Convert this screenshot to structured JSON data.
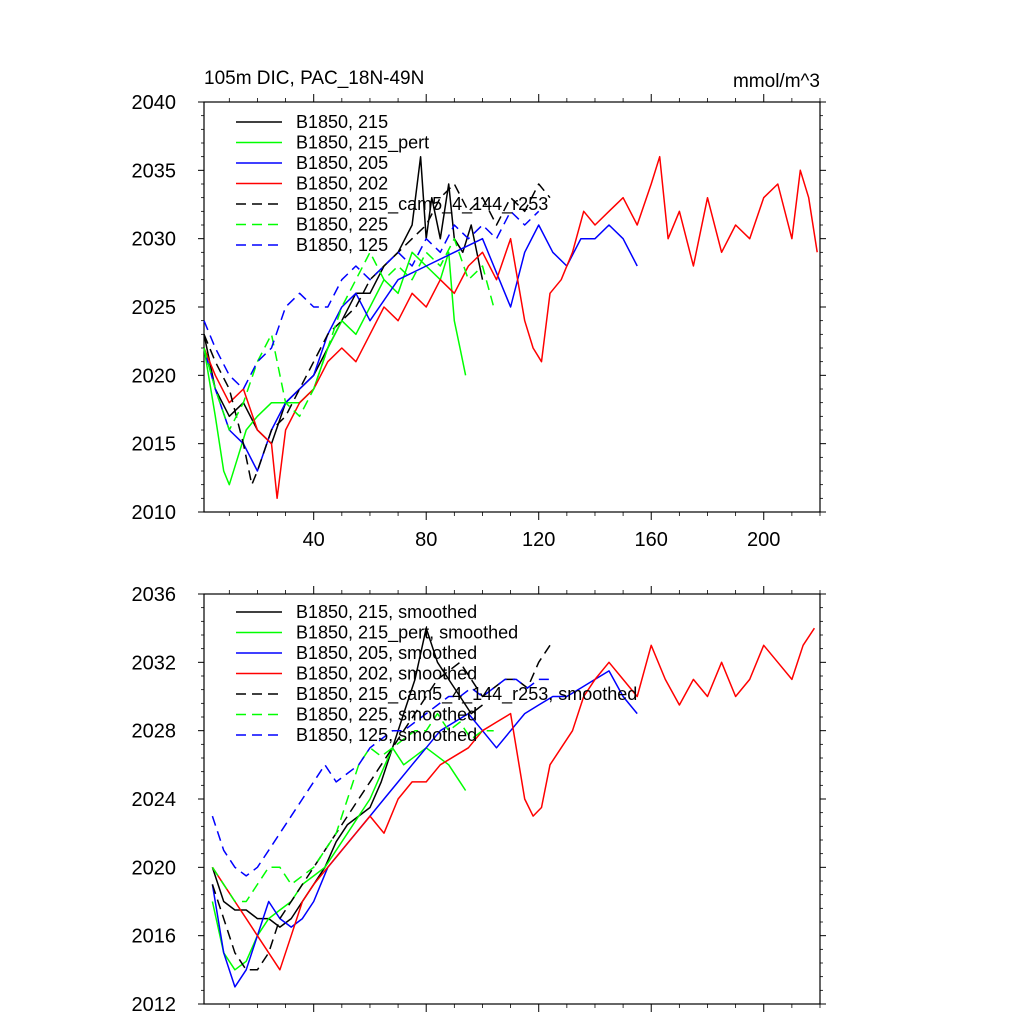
{
  "chart_data": [
    {
      "type": "line",
      "title_left": "105m DIC, PAC_18N-49N",
      "title_right": "mmol/m^3",
      "xlim": [
        1,
        220
      ],
      "ylim": [
        2010,
        2040
      ],
      "xticks": [
        40,
        80,
        120,
        160,
        200
      ],
      "yticks": [
        2010,
        2015,
        2020,
        2025,
        2030,
        2035,
        2040
      ],
      "legend_position": "top-left",
      "series": [
        {
          "name": "B1850, 215",
          "color": "#000000",
          "dash": false,
          "x": [
            1,
            5,
            10,
            15,
            20,
            25,
            30,
            35,
            40,
            45,
            50,
            55,
            60,
            65,
            70,
            75,
            78,
            80,
            82,
            85,
            88,
            90,
            93,
            96,
            100
          ],
          "y": [
            2023,
            2019,
            2017,
            2018,
            2016,
            2015,
            2018,
            2019,
            2020,
            2022,
            2024,
            2026,
            2026,
            2028,
            2029,
            2031,
            2036,
            2030,
            2033,
            2030,
            2034,
            2030,
            2029,
            2031,
            2027
          ]
        },
        {
          "name": "B1850, 215_pert",
          "color": "#00ff00",
          "dash": false,
          "x": [
            1,
            5,
            8,
            10,
            13,
            16,
            20,
            25,
            30,
            35,
            40,
            45,
            50,
            55,
            60,
            65,
            70,
            75,
            80,
            85,
            88,
            90,
            92,
            94
          ],
          "y": [
            2022,
            2017,
            2013,
            2012,
            2014,
            2016,
            2017,
            2018,
            2018,
            2018,
            2019,
            2022,
            2024,
            2023,
            2025,
            2027,
            2026,
            2029,
            2028,
            2027,
            2029,
            2024,
            2022,
            2020
          ]
        },
        {
          "name": "B1850, 205",
          "color": "#0000ff",
          "dash": false,
          "x": [
            1,
            5,
            10,
            15,
            20,
            25,
            30,
            35,
            40,
            45,
            50,
            55,
            60,
            70,
            80,
            90,
            100,
            110,
            115,
            120,
            125,
            130,
            135,
            140,
            145,
            150,
            155
          ],
          "y": [
            2022,
            2019,
            2016,
            2015,
            2013,
            2016,
            2018,
            2019,
            2020,
            2023,
            2025,
            2026,
            2024,
            2027,
            2028,
            2029,
            2030,
            2025,
            2029,
            2031,
            2029,
            2028,
            2030,
            2030,
            2031,
            2030,
            2028
          ]
        },
        {
          "name": "B1850, 202",
          "color": "#ff0000",
          "dash": false,
          "x": [
            1,
            5,
            10,
            15,
            20,
            25,
            27,
            30,
            35,
            40,
            45,
            50,
            55,
            60,
            65,
            70,
            75,
            80,
            85,
            90,
            95,
            100,
            105,
            110,
            115,
            118,
            121,
            124,
            128,
            132,
            136,
            140,
            145,
            150,
            155,
            160,
            163,
            166,
            170,
            175,
            180,
            185,
            190,
            195,
            200,
            205,
            210,
            213,
            216,
            219
          ],
          "y": [
            2022,
            2020,
            2018,
            2019,
            2016,
            2015,
            2011,
            2016,
            2018,
            2019,
            2021,
            2022,
            2021,
            2023,
            2025,
            2024,
            2026,
            2025,
            2027,
            2026,
            2028,
            2029,
            2027,
            2030,
            2024,
            2022,
            2021,
            2026,
            2027,
            2029,
            2032,
            2031,
            2032,
            2033,
            2031,
            2034,
            2036,
            2030,
            2032,
            2028,
            2033,
            2029,
            2031,
            2030,
            2033,
            2034,
            2030,
            2035,
            2033,
            2029
          ]
        },
        {
          "name": "B1850, 215_cam5_4_144_r253",
          "color": "#000000",
          "dash": true,
          "x": [
            1,
            5,
            10,
            15,
            18,
            20,
            25,
            30,
            35,
            40,
            45,
            50,
            55,
            60,
            65,
            70,
            75,
            80,
            85,
            90,
            95,
            100,
            105,
            110,
            115,
            120,
            124
          ],
          "y": [
            2023,
            2021,
            2019,
            2015,
            2012,
            2013,
            2016,
            2017,
            2019,
            2021,
            2023,
            2024,
            2025,
            2027,
            2028,
            2029,
            2030,
            2031,
            2033,
            2034,
            2032,
            2033,
            2031,
            2033,
            2032,
            2034,
            2033
          ]
        },
        {
          "name": "B1850, 225",
          "color": "#00ff00",
          "dash": true,
          "x": [
            1,
            5,
            10,
            15,
            20,
            25,
            30,
            35,
            40,
            45,
            50,
            55,
            60,
            65,
            70,
            75,
            80,
            85,
            90,
            95,
            100,
            104
          ],
          "y": [
            2022,
            2019,
            2016,
            2018,
            2021,
            2023,
            2018,
            2017,
            2019,
            2022,
            2025,
            2027,
            2029,
            2027,
            2028,
            2027,
            2029,
            2028,
            2030,
            2027,
            2028,
            2025
          ]
        },
        {
          "name": "B1850, 125",
          "color": "#0000ff",
          "dash": true,
          "x": [
            1,
            5,
            10,
            15,
            20,
            25,
            30,
            35,
            40,
            45,
            50,
            55,
            60,
            65,
            70,
            75,
            80,
            85,
            90,
            95,
            100,
            105,
            110,
            115,
            120
          ],
          "y": [
            2024,
            2022,
            2020,
            2019,
            2021,
            2022,
            2025,
            2026,
            2025,
            2025,
            2027,
            2028,
            2027,
            2028,
            2029,
            2028,
            2030,
            2029,
            2031,
            2030,
            2031,
            2030,
            2032,
            2031,
            2032
          ]
        }
      ]
    },
    {
      "type": "line",
      "xlim": [
        1,
        220
      ],
      "ylim": [
        2012,
        2036
      ],
      "xticks": [
        40,
        80,
        120,
        160,
        200
      ],
      "yticks": [
        2012,
        2016,
        2020,
        2024,
        2028,
        2032,
        2036
      ],
      "legend_position": "top-left",
      "series": [
        {
          "name": "B1850, 215, smoothed",
          "color": "#000000",
          "dash": false,
          "x": [
            4,
            8,
            12,
            16,
            20,
            24,
            28,
            32,
            36,
            40,
            44,
            48,
            52,
            56,
            60,
            64,
            68,
            72,
            76,
            80,
            84,
            88,
            92,
            96,
            100
          ],
          "y": [
            2020,
            2018,
            2017.5,
            2017.5,
            2017,
            2017,
            2016.5,
            2017,
            2018,
            2019,
            2020,
            2021.5,
            2022.5,
            2023,
            2023.5,
            2025,
            2027,
            2029,
            2031,
            2034,
            2032,
            2031,
            2030,
            2029,
            2029.5
          ]
        },
        {
          "name": "B1850, 215_pert, smoothed",
          "color": "#00ff00",
          "dash": false,
          "x": [
            4,
            8,
            12,
            16,
            20,
            24,
            28,
            32,
            36,
            40,
            44,
            48,
            52,
            56,
            60,
            64,
            68,
            72,
            76,
            80,
            84,
            88,
            92,
            94
          ],
          "y": [
            2018,
            2015,
            2014,
            2014.5,
            2016,
            2017,
            2017.5,
            2018,
            2019,
            2019.5,
            2020,
            2021,
            2022,
            2023,
            2024,
            2025.5,
            2027,
            2026,
            2026.5,
            2027,
            2026.5,
            2026,
            2025,
            2024.5
          ]
        },
        {
          "name": "B1850, 205, smoothed",
          "color": "#0000ff",
          "dash": false,
          "x": [
            4,
            8,
            12,
            16,
            20,
            24,
            28,
            32,
            36,
            40,
            45,
            50,
            55,
            60,
            65,
            70,
            75,
            80,
            85,
            90,
            95,
            100,
            105,
            110,
            115,
            120,
            125,
            130,
            135,
            140,
            145,
            150,
            155
          ],
          "y": [
            2019,
            2015,
            2013,
            2014,
            2016,
            2018,
            2017,
            2016.5,
            2017,
            2018,
            2020,
            2021,
            2022,
            2023,
            2024,
            2025,
            2026,
            2027,
            2028,
            2028.5,
            2029,
            2028,
            2027,
            2028,
            2029,
            2029.5,
            2030,
            2030,
            2030.5,
            2031,
            2031.5,
            2030,
            2029
          ]
        },
        {
          "name": "B1850, 202, smoothed",
          "color": "#ff0000",
          "dash": false,
          "x": [
            4,
            8,
            12,
            16,
            20,
            24,
            28,
            32,
            36,
            40,
            45,
            50,
            55,
            60,
            65,
            70,
            75,
            80,
            85,
            90,
            95,
            100,
            105,
            110,
            115,
            118,
            121,
            124,
            128,
            132,
            136,
            140,
            145,
            150,
            155,
            160,
            165,
            170,
            175,
            180,
            185,
            190,
            195,
            200,
            205,
            210,
            214,
            218
          ],
          "y": [
            2020,
            2019,
            2018,
            2017,
            2016,
            2015,
            2014,
            2016,
            2018,
            2019,
            2020,
            2021,
            2022,
            2023,
            2022,
            2024,
            2025,
            2025,
            2026,
            2026.5,
            2027,
            2028,
            2028.5,
            2029,
            2024,
            2023,
            2023.5,
            2026,
            2027,
            2028,
            2030,
            2031,
            2032,
            2031,
            2030,
            2033,
            2031,
            2029.5,
            2031,
            2030,
            2032,
            2030,
            2031,
            2033,
            2032,
            2031,
            2033,
            2034
          ]
        },
        {
          "name": "B1850, 215_cam5_4_144_r253, smoothed",
          "color": "#000000",
          "dash": true,
          "x": [
            4,
            8,
            12,
            16,
            20,
            24,
            28,
            32,
            36,
            40,
            44,
            48,
            52,
            56,
            60,
            64,
            68,
            72,
            76,
            80,
            84,
            88,
            92,
            96,
            100,
            104,
            108,
            112,
            116,
            120,
            124
          ],
          "y": [
            2019,
            2017,
            2015,
            2014,
            2014,
            2015,
            2017,
            2018,
            2019,
            2020,
            2021,
            2022,
            2023,
            2024,
            2025,
            2026,
            2027,
            2028,
            2029,
            2030,
            2031,
            2031.5,
            2032,
            2031,
            2030,
            2030.5,
            2031,
            2031,
            2030.5,
            2032,
            2033
          ]
        },
        {
          "name": "B1850, 225, smoothed",
          "color": "#00ff00",
          "dash": true,
          "x": [
            4,
            8,
            12,
            16,
            20,
            24,
            28,
            32,
            36,
            40,
            44,
            48,
            52,
            56,
            60,
            64,
            68,
            72,
            76,
            80,
            84,
            88,
            92,
            96,
            100,
            104
          ],
          "y": [
            2020,
            2019,
            2018,
            2018,
            2019,
            2020,
            2020,
            2019,
            2019.5,
            2020,
            2021,
            2022,
            2024,
            2026,
            2027,
            2026.5,
            2027,
            2027.5,
            2028,
            2028,
            2029,
            2028,
            2028.5,
            2027.5,
            2028,
            2028
          ]
        },
        {
          "name": "B1850, 125, smoothed",
          "color": "#0000ff",
          "dash": true,
          "x": [
            4,
            8,
            12,
            16,
            20,
            24,
            28,
            32,
            36,
            40,
            44,
            48,
            52,
            56,
            60,
            64,
            68,
            72,
            76,
            80,
            84,
            88,
            92,
            96,
            100,
            104,
            108,
            112,
            116,
            120,
            124
          ],
          "y": [
            2023,
            2021,
            2020,
            2019.5,
            2020,
            2021,
            2022,
            2023,
            2024,
            2025,
            2026,
            2025,
            2025.5,
            2026,
            2027,
            2027.5,
            2028,
            2028,
            2028.5,
            2029,
            2029.5,
            2030,
            2030,
            2030.5,
            2030,
            2030.5,
            2031,
            2031,
            2030.5,
            2031,
            2031
          ]
        }
      ]
    }
  ]
}
